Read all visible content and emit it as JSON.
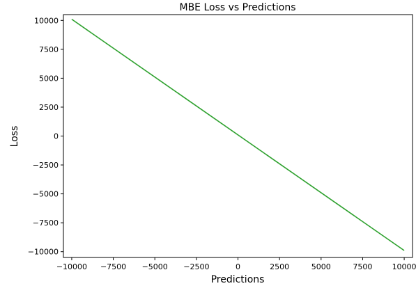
{
  "chart_data": {
    "type": "line",
    "title": "MBE Loss vs Predictions",
    "xlabel": "Predictions",
    "ylabel": "Loss",
    "xlim": [
      -10500,
      10500
    ],
    "ylim": [
      -10500,
      10500
    ],
    "x_ticks": [
      -10000,
      -7500,
      -5000,
      -2500,
      0,
      2500,
      5000,
      7500,
      10000
    ],
    "y_ticks": [
      -10000,
      -7500,
      -5000,
      -2500,
      0,
      2500,
      5000,
      7500,
      10000
    ],
    "x_tick_labels": [
      "−10000",
      "−7500",
      "−5000",
      "−2500",
      "0",
      "2500",
      "5000",
      "7500",
      "10000"
    ],
    "y_tick_labels": [
      "−10000",
      "−7500",
      "−5000",
      "−2500",
      "0",
      "2500",
      "5000",
      "7500",
      "10000"
    ],
    "grid": false,
    "series": [
      {
        "color": "#2ca02c",
        "x": [
          -10000,
          10000
        ],
        "y": [
          10100,
          -9900
        ]
      }
    ]
  }
}
